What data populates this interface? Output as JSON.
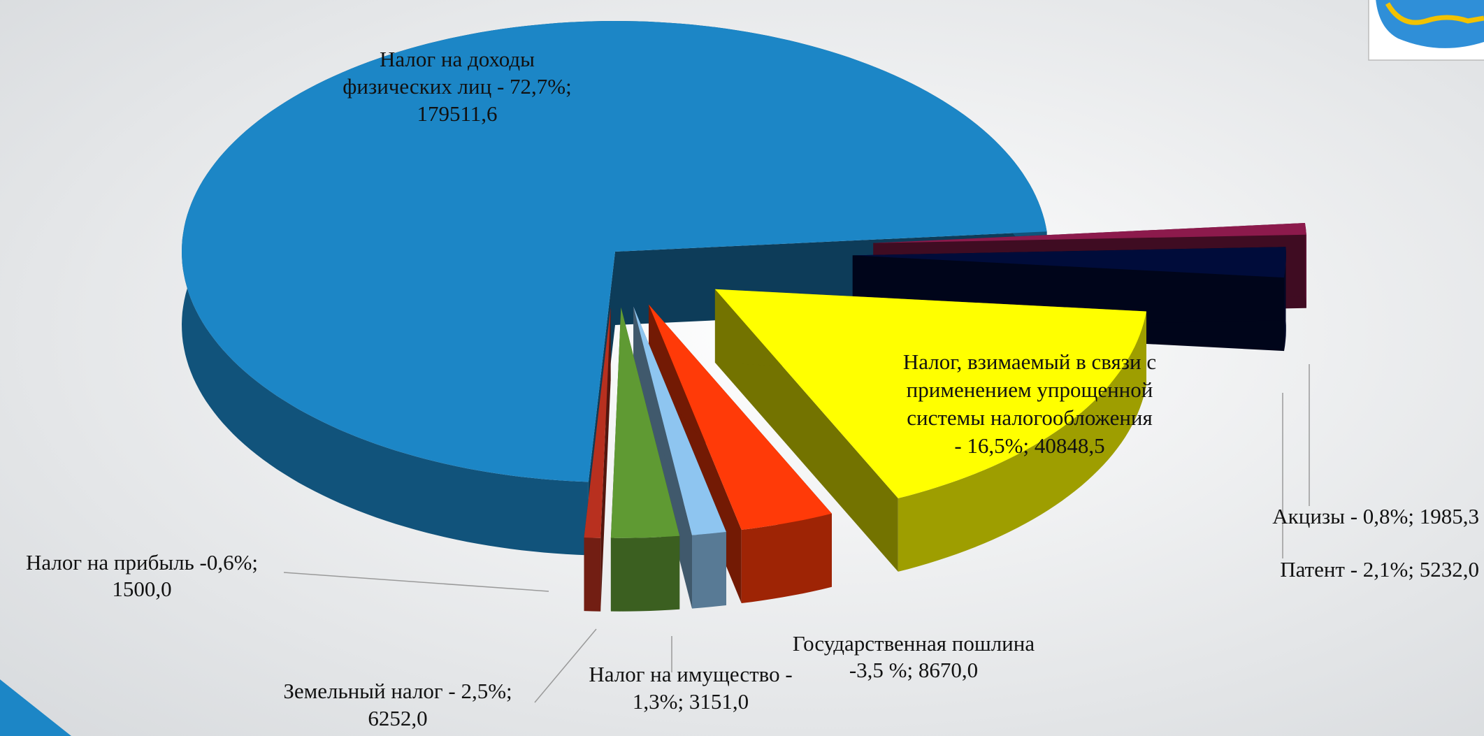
{
  "chart_data": {
    "type": "pie3d",
    "values": [
      179511.6,
      1500.0,
      6252.0,
      3151.0,
      8670.0,
      40848.5,
      5232.0,
      1985.3
    ],
    "value_labels": [
      [
        "Налог на доходы",
        "физических лиц - 72,7%;",
        "179511,6"
      ],
      [
        "Налог на  прибыль -0,6%;",
        "1500,0"
      ],
      [
        "Земельный налог - 2,5%;",
        "6252,0"
      ],
      [
        "Налог на имущество -",
        "1,3%; 3151,0"
      ],
      [
        "Государственная пошлина",
        "-3,5 %; 8670,0"
      ],
      [
        "Налог, взимаемый в связи с",
        "применением упрощенной",
        "системы налогообложения",
        "- 16,5%; 40848,5"
      ],
      [
        "Патент - 2,1%; 5232,0"
      ],
      [
        "Акцизы - 0,8%; 1985,3"
      ]
    ],
    "colors": [
      "#1c86c6",
      "#b8301f",
      "#5f9a33",
      "#8ec5f0",
      "#ff3a08",
      "#ffff00",
      "#000c3a",
      "#8c1a4c"
    ]
  }
}
